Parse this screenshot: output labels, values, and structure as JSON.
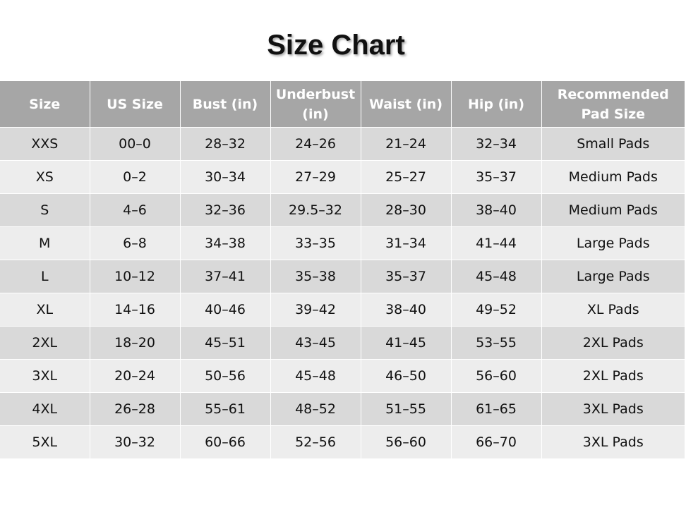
{
  "title": "Size Chart",
  "table": {
    "header": [
      "Size",
      "US Size",
      "Bust (in)",
      "Underbust (in)",
      "Waist (in)",
      "Hip (in)",
      "Recommended Pad Size"
    ],
    "rows": [
      [
        "XXS",
        "00–0",
        "28–32",
        "24–26",
        "21–24",
        "32–34",
        "Small Pads"
      ],
      [
        "XS",
        "0–2",
        "30–34",
        "27–29",
        "25–27",
        "35–37",
        "Medium Pads"
      ],
      [
        "S",
        "4–6",
        "32–36",
        "29.5–32",
        "28–30",
        "38–40",
        "Medium Pads"
      ],
      [
        "M",
        "6–8",
        "34–38",
        "33–35",
        "31–34",
        "41–44",
        "Large Pads"
      ],
      [
        "L",
        "10–12",
        "37–41",
        "35–38",
        "35–37",
        "45–48",
        "Large Pads"
      ],
      [
        "XL",
        "14–16",
        "40–46",
        "39–42",
        "38–40",
        "49–52",
        "XL Pads"
      ],
      [
        "2XL",
        "18–20",
        "45–51",
        "43–45",
        "41–45",
        "53–55",
        "2XL Pads"
      ],
      [
        "3XL",
        "20–24",
        "50–56",
        "45–48",
        "46–50",
        "56–60",
        "2XL Pads"
      ],
      [
        "4XL",
        "26–28",
        "55–61",
        "48–52",
        "51–55",
        "61–65",
        "3XL Pads"
      ],
      [
        "5XL",
        "30–32",
        "60–66",
        "52–56",
        "56–60",
        "66–70",
        "3XL Pads"
      ]
    ]
  }
}
